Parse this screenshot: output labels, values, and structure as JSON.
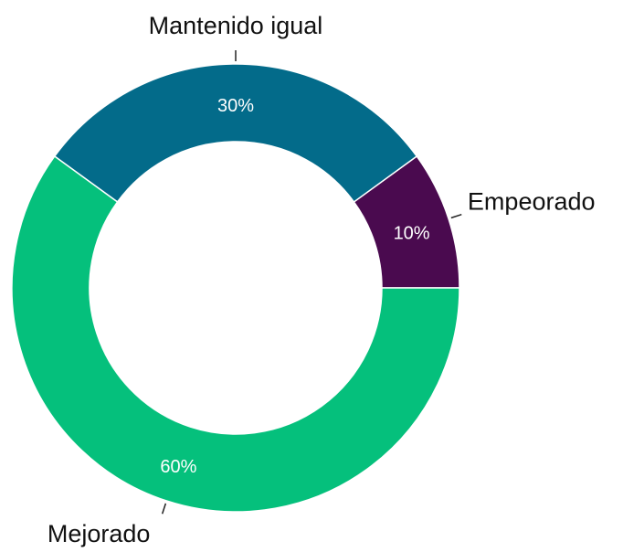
{
  "chart_data": {
    "type": "donut",
    "categories": [
      "Empeorado",
      "Mantenido igual",
      "Mejorado"
    ],
    "values": [
      10,
      30,
      60
    ],
    "value_labels": [
      "10%",
      "30%",
      "60%"
    ],
    "colors": [
      "#4a0a4f",
      "#036b8a",
      "#05c07c"
    ]
  }
}
